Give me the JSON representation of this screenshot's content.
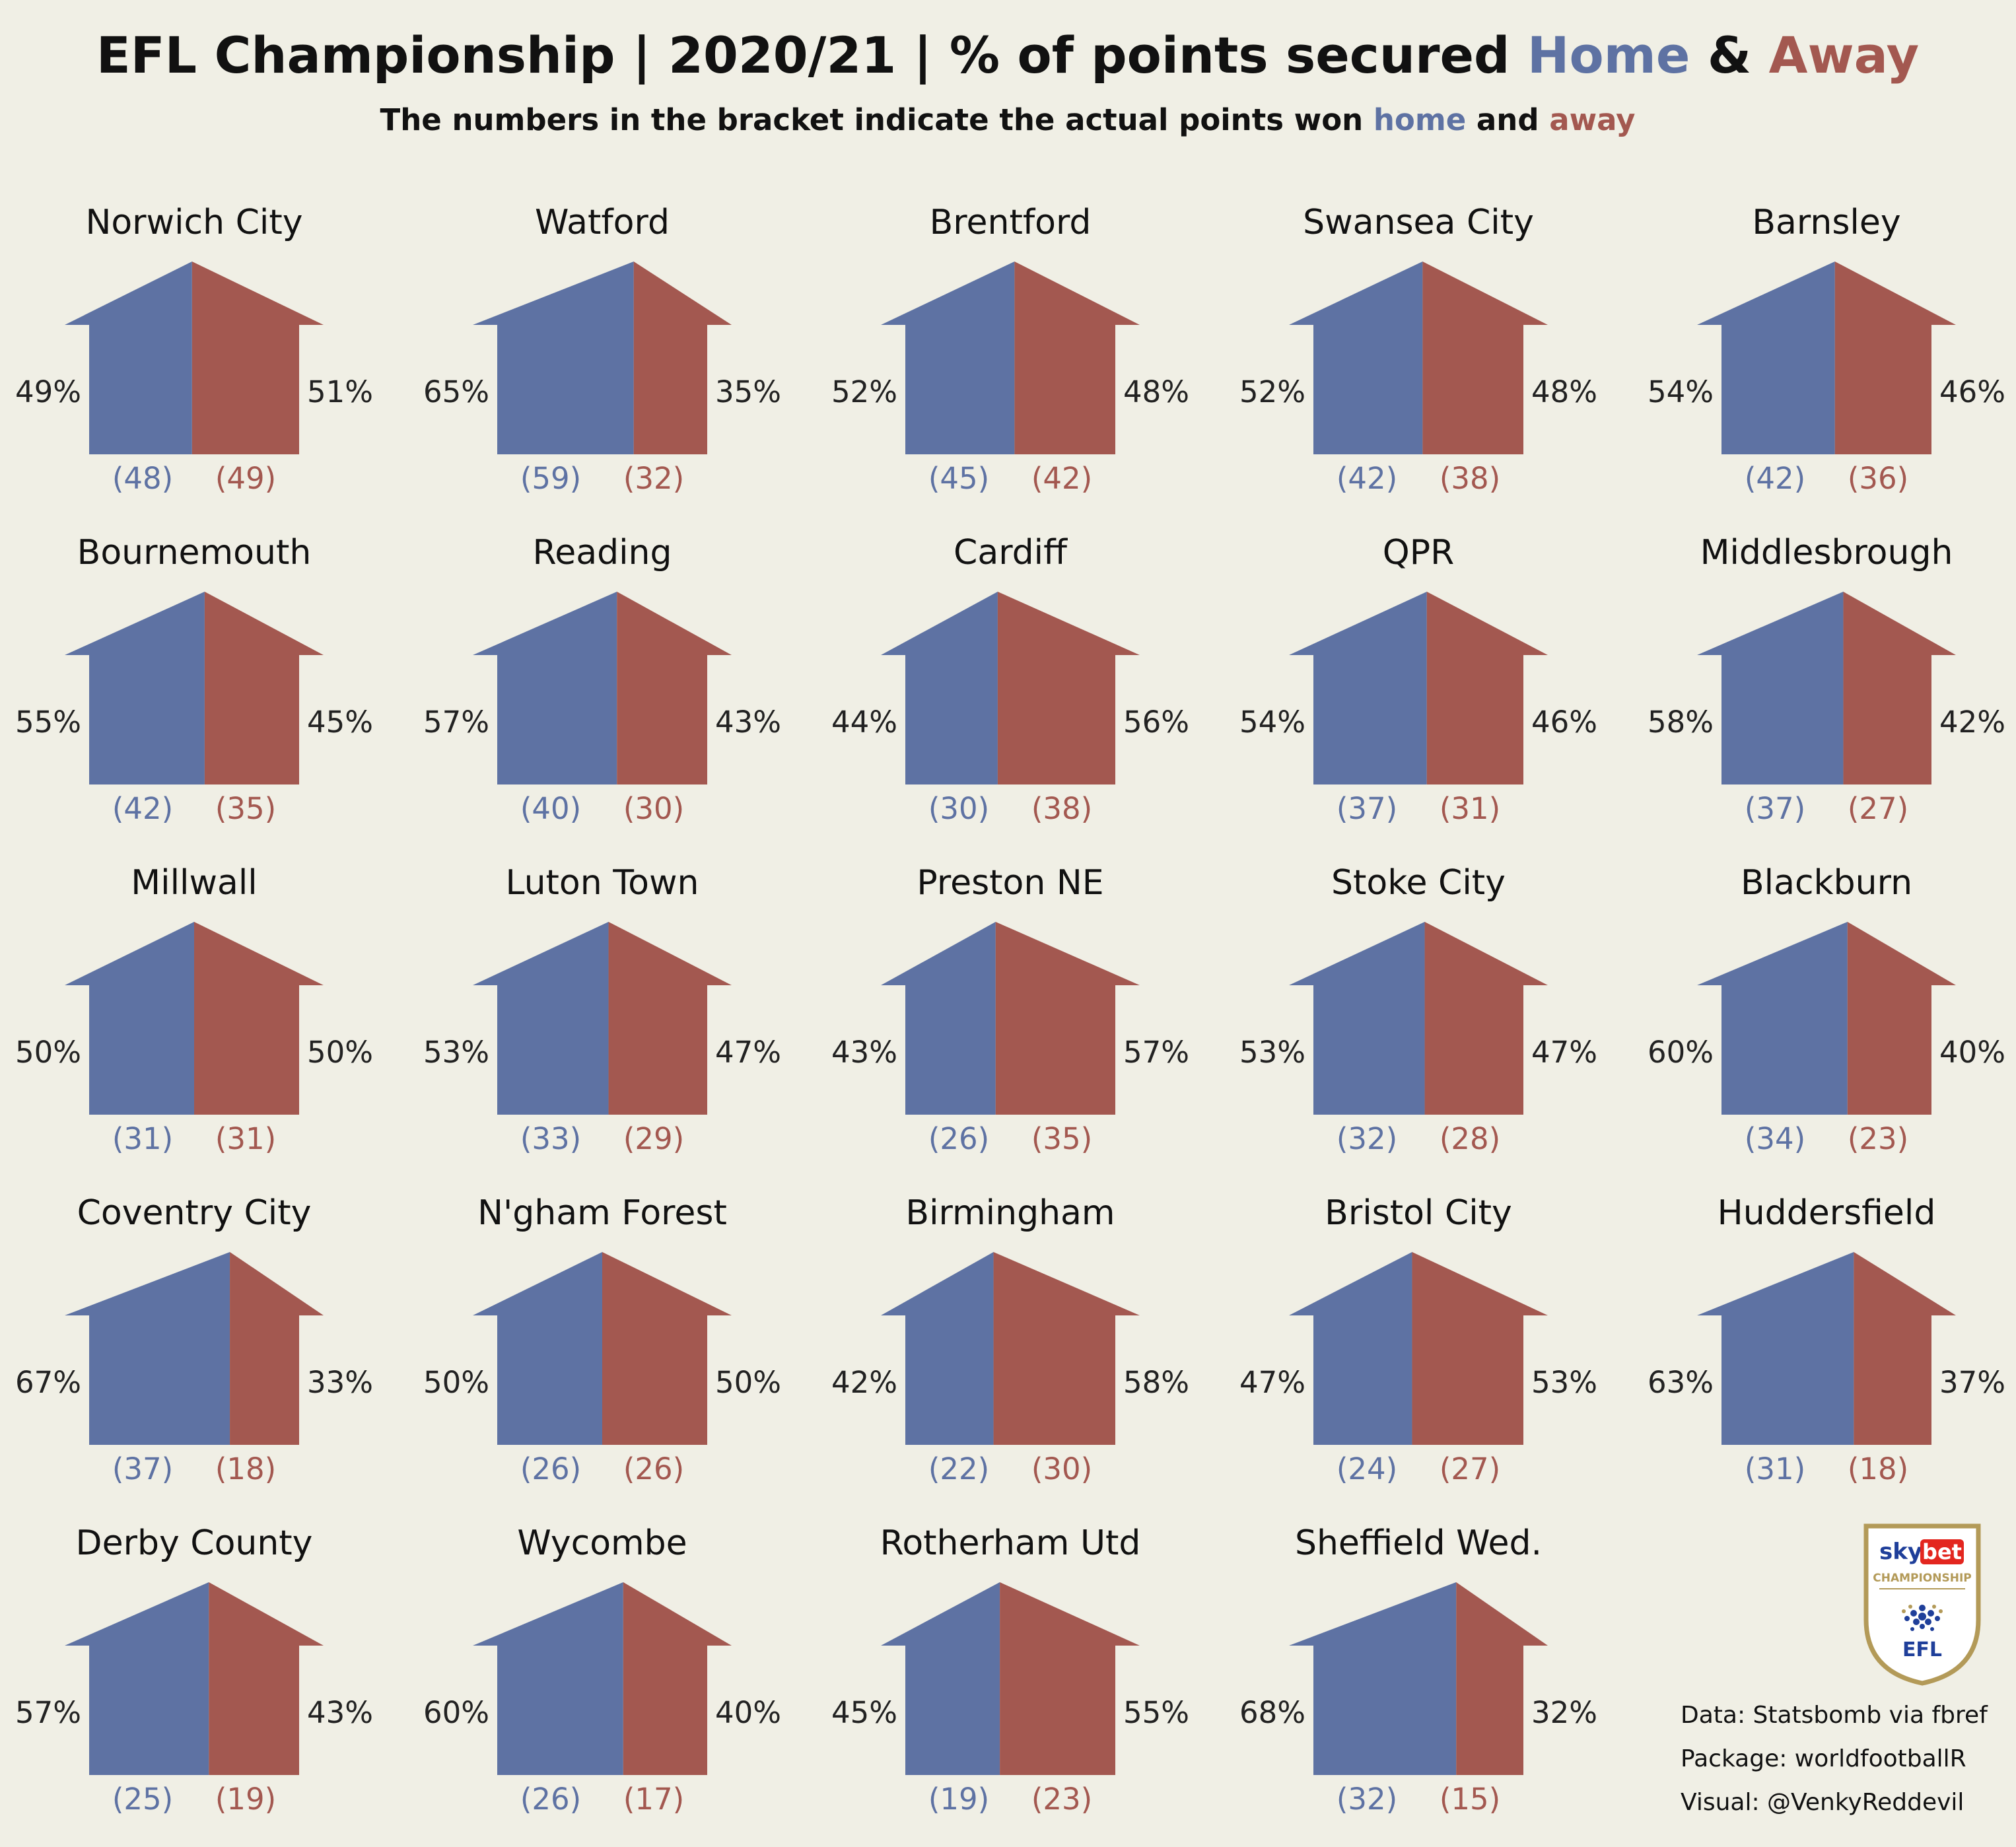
{
  "title": {
    "prefix": "EFL Championship | 2020/21 | % of points secured ",
    "home_word": "Home",
    "amp": " & ",
    "away_word": "Away"
  },
  "subtitle": {
    "prefix": "The numbers in the bracket indicate the actual points won ",
    "home_word": "home",
    "and": " and ",
    "away_word": "away"
  },
  "colors": {
    "home": "#5e72a3",
    "away": "#a35850",
    "background": "#f0efe5"
  },
  "logo": {
    "sky": "sky",
    "bet": "bet",
    "competition": "CHAMPIONSHIP",
    "league": "EFL",
    "icon": "efl-ball-icon"
  },
  "credits": {
    "data": "Data: Statsbomb via fbref",
    "package": "Package: worldfootballR",
    "visual": "Visual: @VenkyReddevil"
  },
  "chart_data": {
    "type": "bar",
    "description_units": "percent of total points won at home vs away, and points won",
    "series_names": [
      "Home",
      "Away"
    ],
    "teams": [
      {
        "team": "Norwich City",
        "home_pct": 49,
        "away_pct": 51,
        "home_pts": 48,
        "away_pts": 49
      },
      {
        "team": "Watford",
        "home_pct": 65,
        "away_pct": 35,
        "home_pts": 59,
        "away_pts": 32
      },
      {
        "team": "Brentford",
        "home_pct": 52,
        "away_pct": 48,
        "home_pts": 45,
        "away_pts": 42
      },
      {
        "team": "Swansea City",
        "home_pct": 52,
        "away_pct": 48,
        "home_pts": 42,
        "away_pts": 38
      },
      {
        "team": "Barnsley",
        "home_pct": 54,
        "away_pct": 46,
        "home_pts": 42,
        "away_pts": 36
      },
      {
        "team": "Bournemouth",
        "home_pct": 55,
        "away_pct": 45,
        "home_pts": 42,
        "away_pts": 35
      },
      {
        "team": "Reading",
        "home_pct": 57,
        "away_pct": 43,
        "home_pts": 40,
        "away_pts": 30
      },
      {
        "team": "Cardiff",
        "home_pct": 44,
        "away_pct": 56,
        "home_pts": 30,
        "away_pts": 38
      },
      {
        "team": "QPR",
        "home_pct": 54,
        "away_pct": 46,
        "home_pts": 37,
        "away_pts": 31
      },
      {
        "team": "Middlesbrough",
        "home_pct": 58,
        "away_pct": 42,
        "home_pts": 37,
        "away_pts": 27
      },
      {
        "team": "Millwall",
        "home_pct": 50,
        "away_pct": 50,
        "home_pts": 31,
        "away_pts": 31
      },
      {
        "team": "Luton Town",
        "home_pct": 53,
        "away_pct": 47,
        "home_pts": 33,
        "away_pts": 29
      },
      {
        "team": "Preston NE",
        "home_pct": 43,
        "away_pct": 57,
        "home_pts": 26,
        "away_pts": 35
      },
      {
        "team": "Stoke City",
        "home_pct": 53,
        "away_pct": 47,
        "home_pts": 32,
        "away_pts": 28
      },
      {
        "team": "Blackburn",
        "home_pct": 60,
        "away_pct": 40,
        "home_pts": 34,
        "away_pts": 23
      },
      {
        "team": "Coventry City",
        "home_pct": 67,
        "away_pct": 33,
        "home_pts": 37,
        "away_pts": 18
      },
      {
        "team": "N'gham Forest",
        "home_pct": 50,
        "away_pct": 50,
        "home_pts": 26,
        "away_pts": 26
      },
      {
        "team": "Birmingham",
        "home_pct": 42,
        "away_pct": 58,
        "home_pts": 22,
        "away_pts": 30
      },
      {
        "team": "Bristol City",
        "home_pct": 47,
        "away_pct": 53,
        "home_pts": 24,
        "away_pts": 27
      },
      {
        "team": "Huddersfield",
        "home_pct": 63,
        "away_pct": 37,
        "home_pts": 31,
        "away_pts": 18
      },
      {
        "team": "Derby County",
        "home_pct": 57,
        "away_pct": 43,
        "home_pts": 25,
        "away_pts": 19
      },
      {
        "team": "Wycombe",
        "home_pct": 60,
        "away_pct": 40,
        "home_pts": 26,
        "away_pts": 17
      },
      {
        "team": "Rotherham Utd",
        "home_pct": 45,
        "away_pct": 55,
        "home_pts": 19,
        "away_pts": 23
      },
      {
        "team": "Sheffield Wed.",
        "home_pct": 68,
        "away_pct": 32,
        "home_pts": 32,
        "away_pts": 15
      }
    ]
  }
}
